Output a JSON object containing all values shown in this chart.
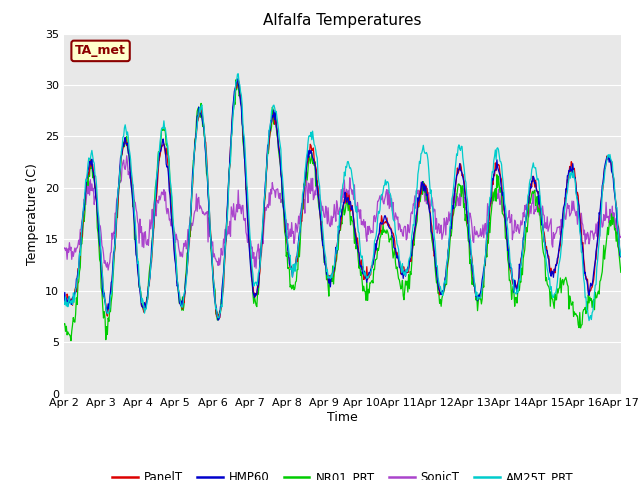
{
  "title": "Alfalfa Temperatures",
  "xlabel": "Time",
  "ylabel": "Temperature (C)",
  "ylim": [
    0,
    35
  ],
  "xlim": [
    0,
    15
  ],
  "xtick_labels": [
    "Apr 2",
    "Apr 3",
    "Apr 4",
    "Apr 5",
    "Apr 6",
    "Apr 7",
    "Apr 8",
    "Apr 9",
    "Apr 10",
    "Apr 11",
    "Apr 12",
    "Apr 13",
    "Apr 14",
    "Apr 15",
    "Apr 16",
    "Apr 17"
  ],
  "annotation_text": "TA_met",
  "annotation_bg": "#ffffcc",
  "annotation_border": "#8B0000",
  "fig_bg": "#ffffff",
  "plot_bg": "#e8e8e8",
  "grid_color": "#ffffff",
  "line_colors": {
    "PanelT": "#dd0000",
    "HMP60": "#0000cc",
    "NR01_PRT": "#00cc00",
    "SonicT": "#aa44cc",
    "AM25T_PRT": "#00cccc"
  },
  "legend_labels": [
    "PanelT",
    "HMP60",
    "NR01_PRT",
    "SonicT",
    "AM25T_PRT"
  ]
}
